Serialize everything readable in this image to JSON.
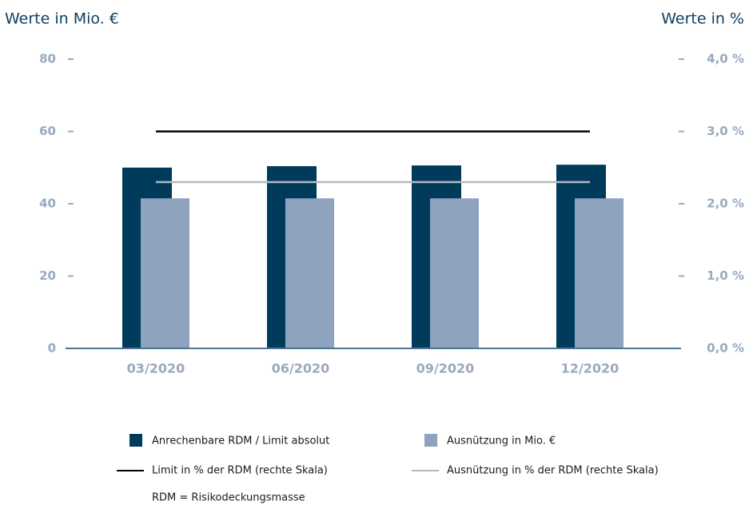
{
  "chart_data": {
    "type": "bar",
    "y_axis_title": "Werte in Mio. €",
    "y2_axis_title": "Werte in %",
    "categories": [
      "03/2020",
      "06/2020",
      "09/2020",
      "12/2020"
    ],
    "series": [
      {
        "name": "Anrechenbare RDM / Limit absolut",
        "type": "bar",
        "color": "#003b5c",
        "values": [
          50,
          50.4,
          50.6,
          50.8
        ]
      },
      {
        "name": "Ausnützung in Mio. €",
        "type": "bar",
        "color": "#8ea3bd",
        "values": [
          41.5,
          41.5,
          41.5,
          41.5
        ]
      },
      {
        "name": "Limit in % der RDM (rechte Skala)",
        "type": "line",
        "axis": "y2",
        "color": "#000000",
        "values": [
          3.0,
          3.0,
          3.0,
          3.0
        ]
      },
      {
        "name": "Ausnützung in % der RDM (rechte Skala)",
        "type": "line",
        "axis": "y2",
        "color": "#b4b8bd",
        "values": [
          2.3,
          2.3,
          2.3,
          2.3
        ]
      }
    ],
    "ylim": [
      0,
      80
    ],
    "yticks": [
      0,
      20,
      40,
      60,
      80
    ],
    "y2lim": [
      0,
      4
    ],
    "y2ticks": [
      {
        "value": 0,
        "label": "0,0 %"
      },
      {
        "value": 1,
        "label": "1,0 %"
      },
      {
        "value": 2,
        "label": "2,0 %"
      },
      {
        "value": 3,
        "label": "3,0 %"
      },
      {
        "value": 4,
        "label": "4,0 %"
      }
    ],
    "note": "RDM = Risikodeckungsmasse"
  }
}
